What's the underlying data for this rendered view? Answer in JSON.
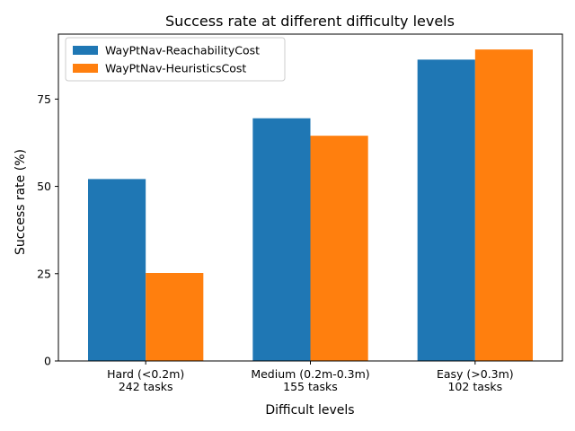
{
  "chart_data": {
    "type": "bar",
    "title": "Success rate at different difficulty levels",
    "xlabel": "Difficult levels",
    "ylabel": "Success rate (%)",
    "categories": [
      [
        "Hard (<0.2m)",
        "242 tasks"
      ],
      [
        "Medium (0.2m-0.3m)",
        "155 tasks"
      ],
      [
        "Easy (>0.3m)",
        "102 tasks"
      ]
    ],
    "series": [
      {
        "name": "WayPtNav-ReachabilityCost",
        "color": "#1f77b4",
        "values": [
          52.1,
          69.5,
          86.3
        ]
      },
      {
        "name": "WayPtNav-HeuristicsCost",
        "color": "#ff7f0e",
        "values": [
          25.2,
          64.5,
          89.2
        ]
      }
    ],
    "ylim": [
      0,
      93.6
    ],
    "yticks": [
      0,
      25,
      50,
      75
    ],
    "grid": false,
    "legend_position": "top-left"
  }
}
